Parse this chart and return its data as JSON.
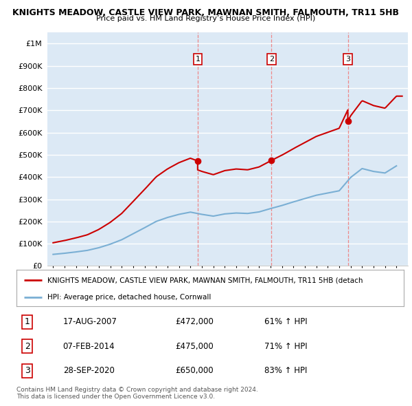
{
  "title1": "KNIGHTS MEADOW, CASTLE VIEW PARK, MAWNAN SMITH, FALMOUTH, TR11 5HB",
  "title2": "Price paid vs. HM Land Registry’s House Price Index (HPI)",
  "ytick_values": [
    0,
    100000,
    200000,
    300000,
    400000,
    500000,
    600000,
    700000,
    800000,
    900000,
    1000000
  ],
  "red_color": "#cc0000",
  "blue_color": "#7aafd4",
  "vline_color": "#ee8888",
  "purchases": [
    {
      "date_num": 2007.63,
      "price": 472000,
      "label": "1"
    },
    {
      "date_num": 2014.09,
      "price": 475000,
      "label": "2"
    },
    {
      "date_num": 2020.75,
      "price": 650000,
      "label": "3"
    }
  ],
  "legend_label_red": "KNIGHTS MEADOW, CASTLE VIEW PARK, MAWNAN SMITH, FALMOUTH, TR11 5HB (detach",
  "legend_label_blue": "HPI: Average price, detached house, Cornwall",
  "table_rows": [
    {
      "num": "1",
      "date": "17-AUG-2007",
      "price": "£472,000",
      "hpi": "61% ↑ HPI"
    },
    {
      "num": "2",
      "date": "07-FEB-2014",
      "price": "£475,000",
      "hpi": "71% ↑ HPI"
    },
    {
      "num": "3",
      "date": "28-SEP-2020",
      "price": "£650,000",
      "hpi": "83% ↑ HPI"
    }
  ],
  "footnote1": "Contains HM Land Registry data © Crown copyright and database right 2024.",
  "footnote2": "This data is licensed under the Open Government Licence v3.0.",
  "xlim": [
    1994.5,
    2026.0
  ],
  "ylim": [
    0,
    1050000
  ],
  "background_chart": "#dce9f5",
  "background_fig": "#ffffff",
  "years_hpi": [
    1995,
    1996,
    1997,
    1998,
    1999,
    2000,
    2001,
    2002,
    2003,
    2004,
    2005,
    2006,
    2007,
    2008,
    2009,
    2010,
    2011,
    2012,
    2013,
    2014,
    2015,
    2016,
    2017,
    2018,
    2019,
    2020,
    2021,
    2022,
    2023,
    2024,
    2025
  ],
  "hpi_values": [
    52000,
    57000,
    63000,
    70000,
    82000,
    98000,
    118000,
    145000,
    172000,
    200000,
    218000,
    232000,
    242000,
    232000,
    224000,
    234000,
    238000,
    236000,
    243000,
    258000,
    272000,
    288000,
    303000,
    318000,
    328000,
    338000,
    398000,
    438000,
    425000,
    418000,
    450000
  ],
  "hpi_2007": 241600,
  "hpi_2014": 257000,
  "hpi_2020": 337000
}
